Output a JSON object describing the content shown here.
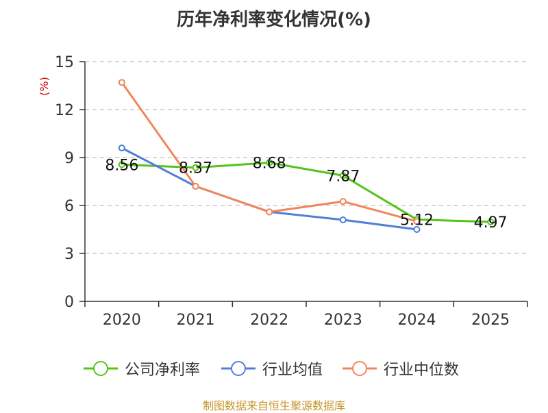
{
  "chart_data": {
    "type": "line",
    "title": "历年净利率变化情况(%)",
    "ylabel": "(%)",
    "xlabel": "",
    "ylim": [
      0,
      15
    ],
    "yticks": [
      0,
      3,
      6,
      9,
      12,
      15
    ],
    "grid": true,
    "categories": [
      "2020",
      "2021",
      "2022",
      "2023",
      "2024",
      "2025"
    ],
    "series": [
      {
        "name": "公司净利率",
        "color": "#52c41a",
        "values": [
          8.56,
          8.37,
          8.68,
          7.87,
          5.12,
          4.97
        ],
        "labels": [
          "8.56",
          "8.37",
          "8.68",
          "7.87",
          "5.12",
          "4.97"
        ]
      },
      {
        "name": "行业均值",
        "color": "#4f7fd6",
        "values": [
          9.6,
          7.2,
          5.6,
          5.1,
          4.5,
          null
        ]
      },
      {
        "name": "行业中位数",
        "color": "#f2855a",
        "values": [
          13.7,
          7.2,
          5.6,
          6.25,
          5.0,
          null
        ]
      }
    ],
    "legend_position": "bottom",
    "source": "制图数据来自恒生聚源数据库"
  }
}
